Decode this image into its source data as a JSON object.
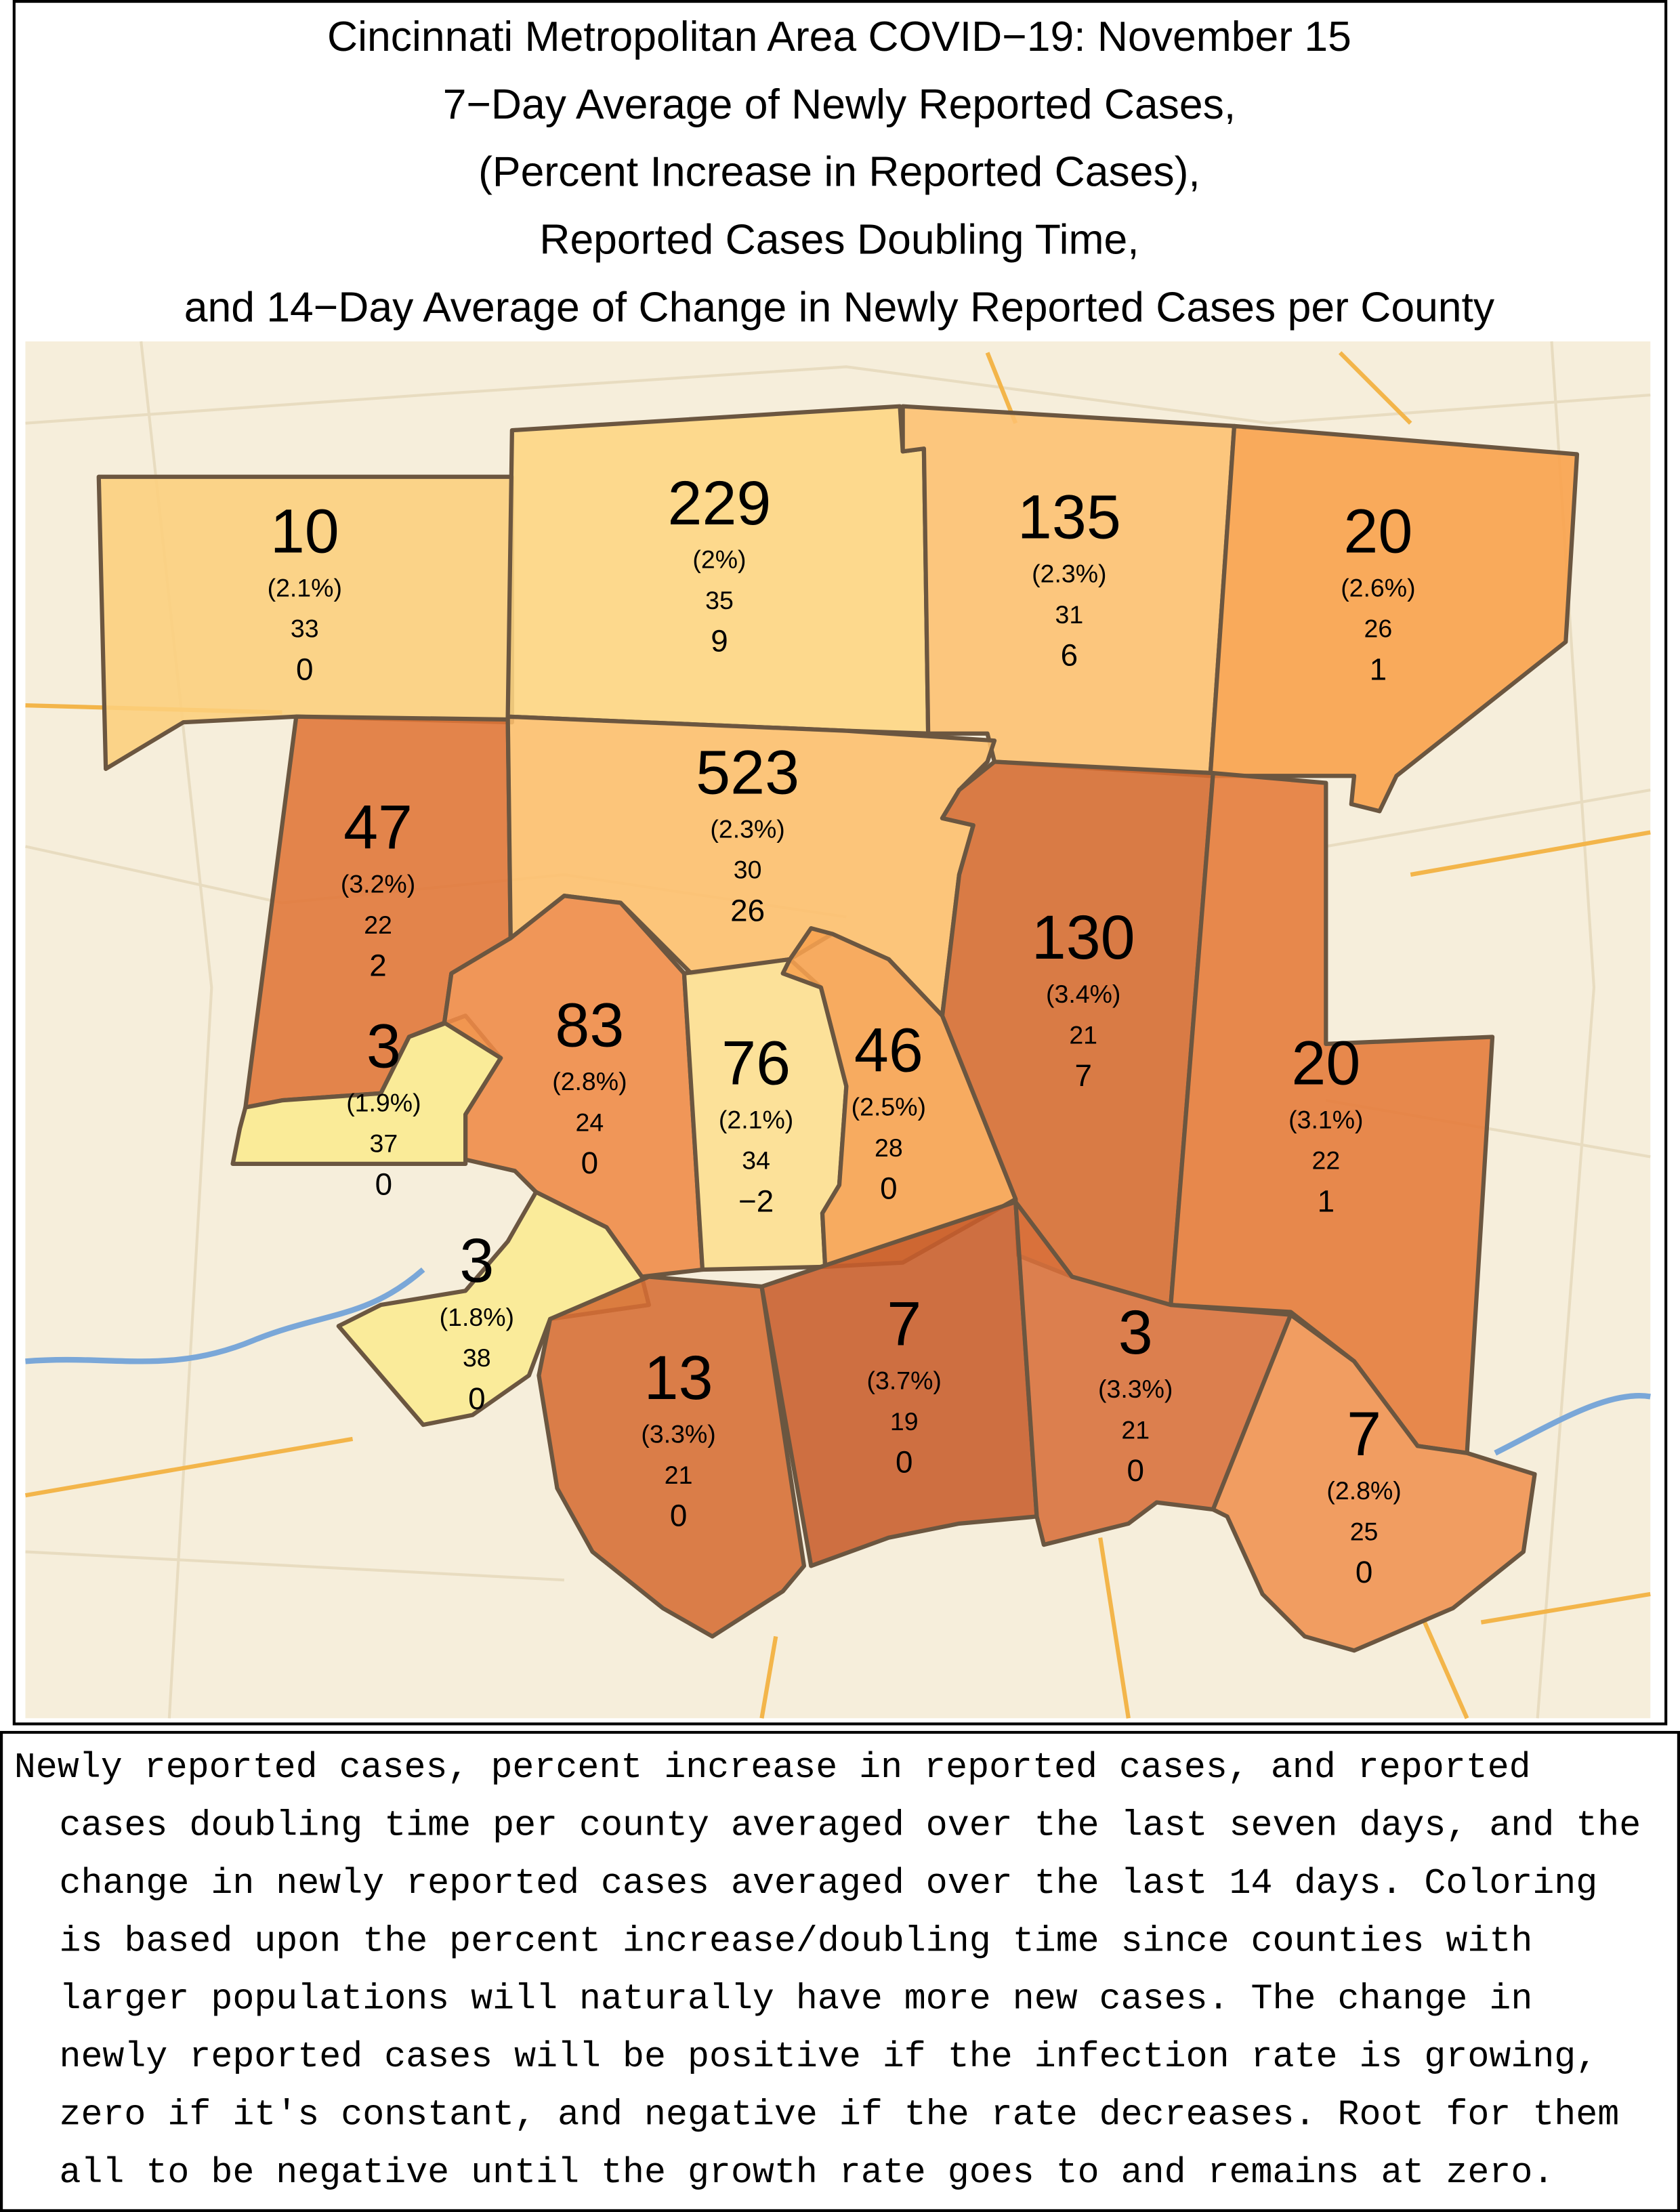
{
  "title": [
    "Cincinnati Metropolitan Area COVID−19: November 15",
    "7−Day Average of Newly Reported Cases,",
    "(Percent Increase in Reported Cases),",
    "Reported Cases Doubling Time,",
    "and 14−Day Average of Change in Newly Reported Cases per County"
  ],
  "counties": [
    {
      "cases": "10",
      "percent": "(2.1%)",
      "doubling": "33",
      "change": "0",
      "color": "#fccf7c"
    },
    {
      "cases": "229",
      "percent": "(2%)",
      "doubling": "35",
      "change": "9",
      "color": "#fed682"
    },
    {
      "cases": "135",
      "percent": "(2.3%)",
      "doubling": "31",
      "change": "6",
      "color": "#fdc070"
    },
    {
      "cases": "20",
      "percent": "(2.6%)",
      "doubling": "26",
      "change": "1",
      "color": "#f9a049"
    },
    {
      "cases": "47",
      "percent": "(3.2%)",
      "doubling": "22",
      "change": "2",
      "color": "#e07537"
    },
    {
      "cases": "523",
      "percent": "(2.3%)",
      "doubling": "30",
      "change": "26",
      "color": "#fdbf6c"
    },
    {
      "cases": "3",
      "percent": "(1.9%)",
      "doubling": "37",
      "change": "0",
      "color": "#faea8e"
    },
    {
      "cases": "83",
      "percent": "(2.8%)",
      "doubling": "24",
      "change": "0",
      "color": "#ef8a45"
    },
    {
      "cases": "76",
      "percent": "(2.1%)",
      "doubling": "34",
      "change": "−2",
      "color": "#fddf8f"
    },
    {
      "cases": "46",
      "percent": "(2.5%)",
      "doubling": "28",
      "change": "0",
      "color": "#f7a24e"
    },
    {
      "cases": "130",
      "percent": "(3.4%)",
      "doubling": "21",
      "change": "7",
      "color": "#d56b30"
    },
    {
      "cases": "20",
      "percent": "(3.1%)",
      "doubling": "22",
      "change": "1",
      "color": "#e57a38"
    },
    {
      "cases": "3",
      "percent": "(1.8%)",
      "doubling": "38",
      "change": "0",
      "color": "#faeb91"
    },
    {
      "cases": "13",
      "percent": "(3.3%)",
      "doubling": "21",
      "change": "0",
      "color": "#d66d33"
    },
    {
      "cases": "7",
      "percent": "(3.7%)",
      "doubling": "19",
      "change": "0",
      "color": "#c85d2b"
    },
    {
      "cases": "3",
      "percent": "(3.3%)",
      "doubling": "21",
      "change": "0",
      "color": "#d8703a"
    },
    {
      "cases": "7",
      "percent": "(2.8%)",
      "doubling": "25",
      "change": "0",
      "color": "#f09250"
    }
  ],
  "caption": [
    "Newly reported cases, percent increase in reported cases, and reported",
    "cases doubling time per county averaged over the last seven days, and the",
    "change in newly reported cases averaged over the last 14 days. Coloring",
    "is based upon the percent increase/doubling time since counties with",
    "larger populations will naturally have more new cases. The change in",
    "newly reported cases will be positive if the infection rate is growing,",
    "zero if it's constant, and negative if the rate decreases. Root for them",
    "all to be negative until the growth rate goes to and remains at zero."
  ]
}
